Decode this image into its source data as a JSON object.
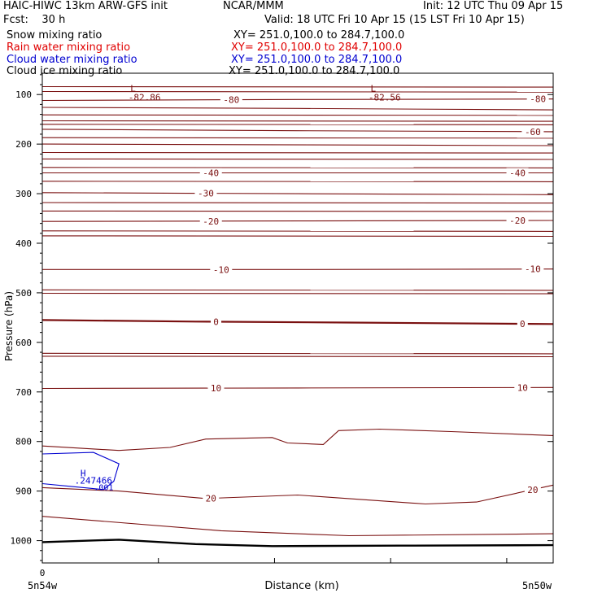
{
  "header": {
    "title_left": "HAIC-HIWC 13km ARW-GFS init",
    "title_center": "NCAR/MMM",
    "init": "Init: 12 UTC Thu 09 Apr 15",
    "fcst": "Fcst:    30 h",
    "valid": "Valid: 18 UTC Fri 10 Apr 15 (15 LST Fri 10 Apr 15)",
    "fields": [
      {
        "label": "Snow mixing ratio",
        "xy": "XY= 251.0,100.0 to 284.7,100.0",
        "color": "#000000"
      },
      {
        "label": "Rain water mixing ratio",
        "xy": "XY= 251.0,100.0 to 284.7,100.0",
        "color": "#e00000"
      },
      {
        "label": "Cloud water mixing ratio",
        "xy": "XY= 251.0,100.0 to 284.7,100.0",
        "color": "#0000d0"
      },
      {
        "label": "Cloud ice mixing ratio",
        "xy": "XY= 251.0,100.0 to 284.7,100.0",
        "color": "#000000"
      }
    ]
  },
  "chart_data": {
    "type": "line",
    "ylabel": "Pressure (hPa)",
    "xlabel": "Distance (km)",
    "xlim": [
      0,
      1
    ],
    "ylim": [
      1045,
      57
    ],
    "yticks": [
      100,
      200,
      300,
      400,
      500,
      600,
      700,
      800,
      900,
      1000
    ],
    "xtick_labels": [
      {
        "x": 0.0,
        "label": "0"
      }
    ],
    "x_endpoints": {
      "left": "5n54w",
      "right": "5n50w"
    },
    "temperature_contours": [
      {
        "value": -80,
        "label": "-80",
        "points": [
          [
            0.0,
            112
          ],
          [
            0.5,
            110
          ],
          [
            1.0,
            109
          ]
        ],
        "labels_at": [
          0.37,
          0.97
        ]
      },
      {
        "value": -70,
        "label": "",
        "points": [
          [
            0.0,
            126
          ],
          [
            0.5,
            128
          ],
          [
            1.0,
            131
          ]
        ],
        "labels_at": []
      },
      {
        "value": -60,
        "label": "-60",
        "points": [
          [
            0.0,
            170
          ],
          [
            0.5,
            173
          ],
          [
            1.0,
            175
          ]
        ],
        "labels_at": [
          0.96
        ]
      },
      {
        "value": -50,
        "label": "",
        "points": [
          [
            0.0,
            200
          ],
          [
            1.0,
            203
          ]
        ],
        "labels_at": []
      },
      {
        "value": -40,
        "label": "-40",
        "points": [
          [
            0.0,
            258
          ],
          [
            0.5,
            258
          ],
          [
            1.0,
            258
          ]
        ],
        "labels_at": [
          0.33,
          0.93
        ]
      },
      {
        "value": -30,
        "label": "-30",
        "points": [
          [
            0.0,
            298
          ],
          [
            0.5,
            300
          ],
          [
            1.0,
            302
          ]
        ],
        "labels_at": [
          0.32
        ]
      },
      {
        "value": -20,
        "label": "-20",
        "points": [
          [
            0.0,
            356
          ],
          [
            0.5,
            355
          ],
          [
            1.0,
            354
          ]
        ],
        "labels_at": [
          0.33,
          0.93
        ]
      },
      {
        "value": -10,
        "label": "-10",
        "points": [
          [
            0.0,
            453
          ],
          [
            0.5,
            453
          ],
          [
            1.0,
            452
          ]
        ],
        "labels_at": [
          0.35,
          0.96
        ]
      },
      {
        "value": 0,
        "label": "0",
        "points": [
          [
            0.0,
            555
          ],
          [
            0.3,
            558
          ],
          [
            0.6,
            560
          ],
          [
            1.0,
            563
          ]
        ],
        "labels_at": [
          0.34,
          0.94
        ]
      },
      {
        "value": 10,
        "label": "10",
        "points": [
          [
            0.0,
            693
          ],
          [
            0.5,
            692
          ],
          [
            1.0,
            691
          ]
        ],
        "labels_at": [
          0.34,
          0.94
        ]
      },
      {
        "value": 20,
        "label": "20",
        "points": [
          [
            0.0,
            893
          ],
          [
            0.15,
            900
          ],
          [
            0.32,
            915
          ],
          [
            0.5,
            908
          ],
          [
            0.75,
            926
          ],
          [
            0.85,
            922
          ],
          [
            1.0,
            888
          ]
        ],
        "labels_at": [
          0.33,
          0.96
        ]
      },
      {
        "value": 30,
        "label": "",
        "points": [
          [
            0.0,
            951
          ],
          [
            0.35,
            980
          ],
          [
            0.6,
            990
          ],
          [
            1.0,
            986
          ]
        ],
        "labels_at": []
      }
    ],
    "extra_isotherms_hpa": [
      84,
      94,
      141,
      153,
      160,
      187,
      217,
      230,
      247,
      275,
      318,
      335,
      375,
      385,
      494,
      501,
      622,
      628
    ],
    "cloud_base_contour": {
      "points": [
        [
          0.0,
          809
        ],
        [
          0.15,
          818
        ],
        [
          0.25,
          812
        ],
        [
          0.32,
          795
        ],
        [
          0.45,
          792
        ],
        [
          0.48,
          803
        ],
        [
          0.55,
          806
        ],
        [
          0.58,
          778
        ],
        [
          0.66,
          775
        ],
        [
          0.8,
          780
        ],
        [
          1.0,
          788
        ]
      ]
    },
    "minima": [
      {
        "label": "L",
        "value": "-82.86",
        "x": 0.2
      },
      {
        "label": "L",
        "value": "-82.56",
        "x": 0.67
      }
    ],
    "cloud_water": {
      "max_label": "H",
      "max_value": ".247466",
      "contour_label": ".001",
      "polygon": [
        [
          0.0,
          825
        ],
        [
          0.1,
          822
        ],
        [
          0.15,
          845
        ],
        [
          0.14,
          880
        ],
        [
          0.12,
          897
        ],
        [
          0.05,
          890
        ],
        [
          0.0,
          885
        ]
      ]
    },
    "surface_pressure": [
      [
        0.0,
        1003
      ],
      [
        0.15,
        998
      ],
      [
        0.3,
        1007
      ],
      [
        0.45,
        1011
      ],
      [
        0.7,
        1010
      ],
      [
        1.0,
        1009
      ]
    ],
    "colors": {
      "temperature": "#7a1010",
      "cloud_water": "#0000d0",
      "surface": "#000000",
      "axes": "#000000"
    }
  }
}
